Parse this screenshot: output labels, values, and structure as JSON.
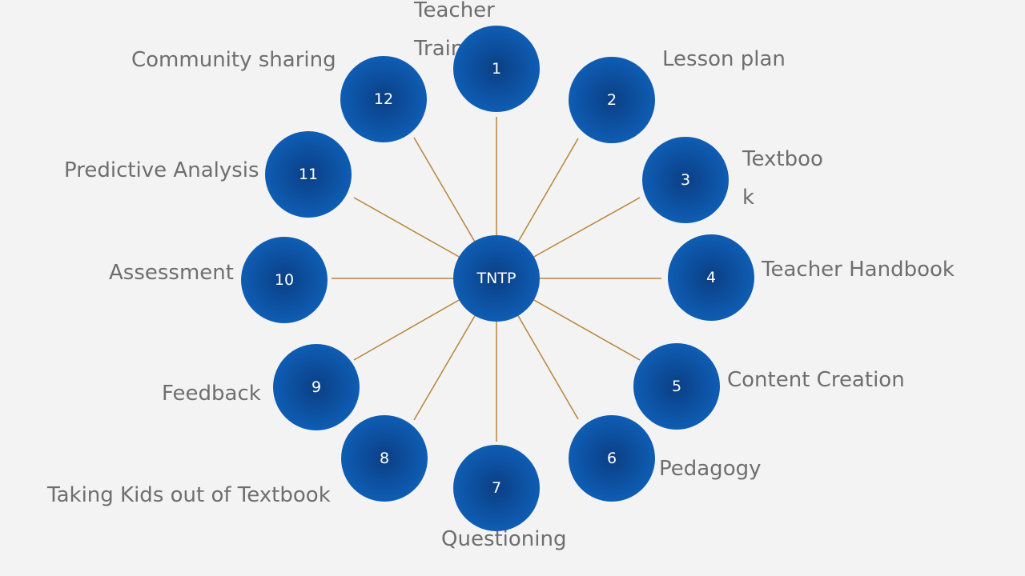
{
  "diagram": {
    "hub": {
      "label": "TNTP"
    },
    "nodes": [
      {
        "number": "1",
        "label": "Teacher Training"
      },
      {
        "number": "2",
        "label": "Lesson plan"
      },
      {
        "number": "3",
        "label": "Textbook"
      },
      {
        "number": "4",
        "label": "Teacher Handbook"
      },
      {
        "number": "5",
        "label": "Content Creation"
      },
      {
        "number": "6",
        "label": "Pedagogy"
      },
      {
        "number": "7",
        "label": "Questioning"
      },
      {
        "number": "8",
        "label": "Taking Kids out of Textbook"
      },
      {
        "number": "9",
        "label": "Feedback"
      },
      {
        "number": "10",
        "label": "Assessment"
      },
      {
        "number": "11",
        "label": "Predictive Analysis"
      },
      {
        "number": "12",
        "label": "Community sharing"
      }
    ],
    "colors": {
      "background": "#f3f3f3",
      "node_fill": "#0f5fb6",
      "node_center": "#0b3f84",
      "connector": "#b8853a",
      "label_text": "#6e6e6e"
    }
  }
}
